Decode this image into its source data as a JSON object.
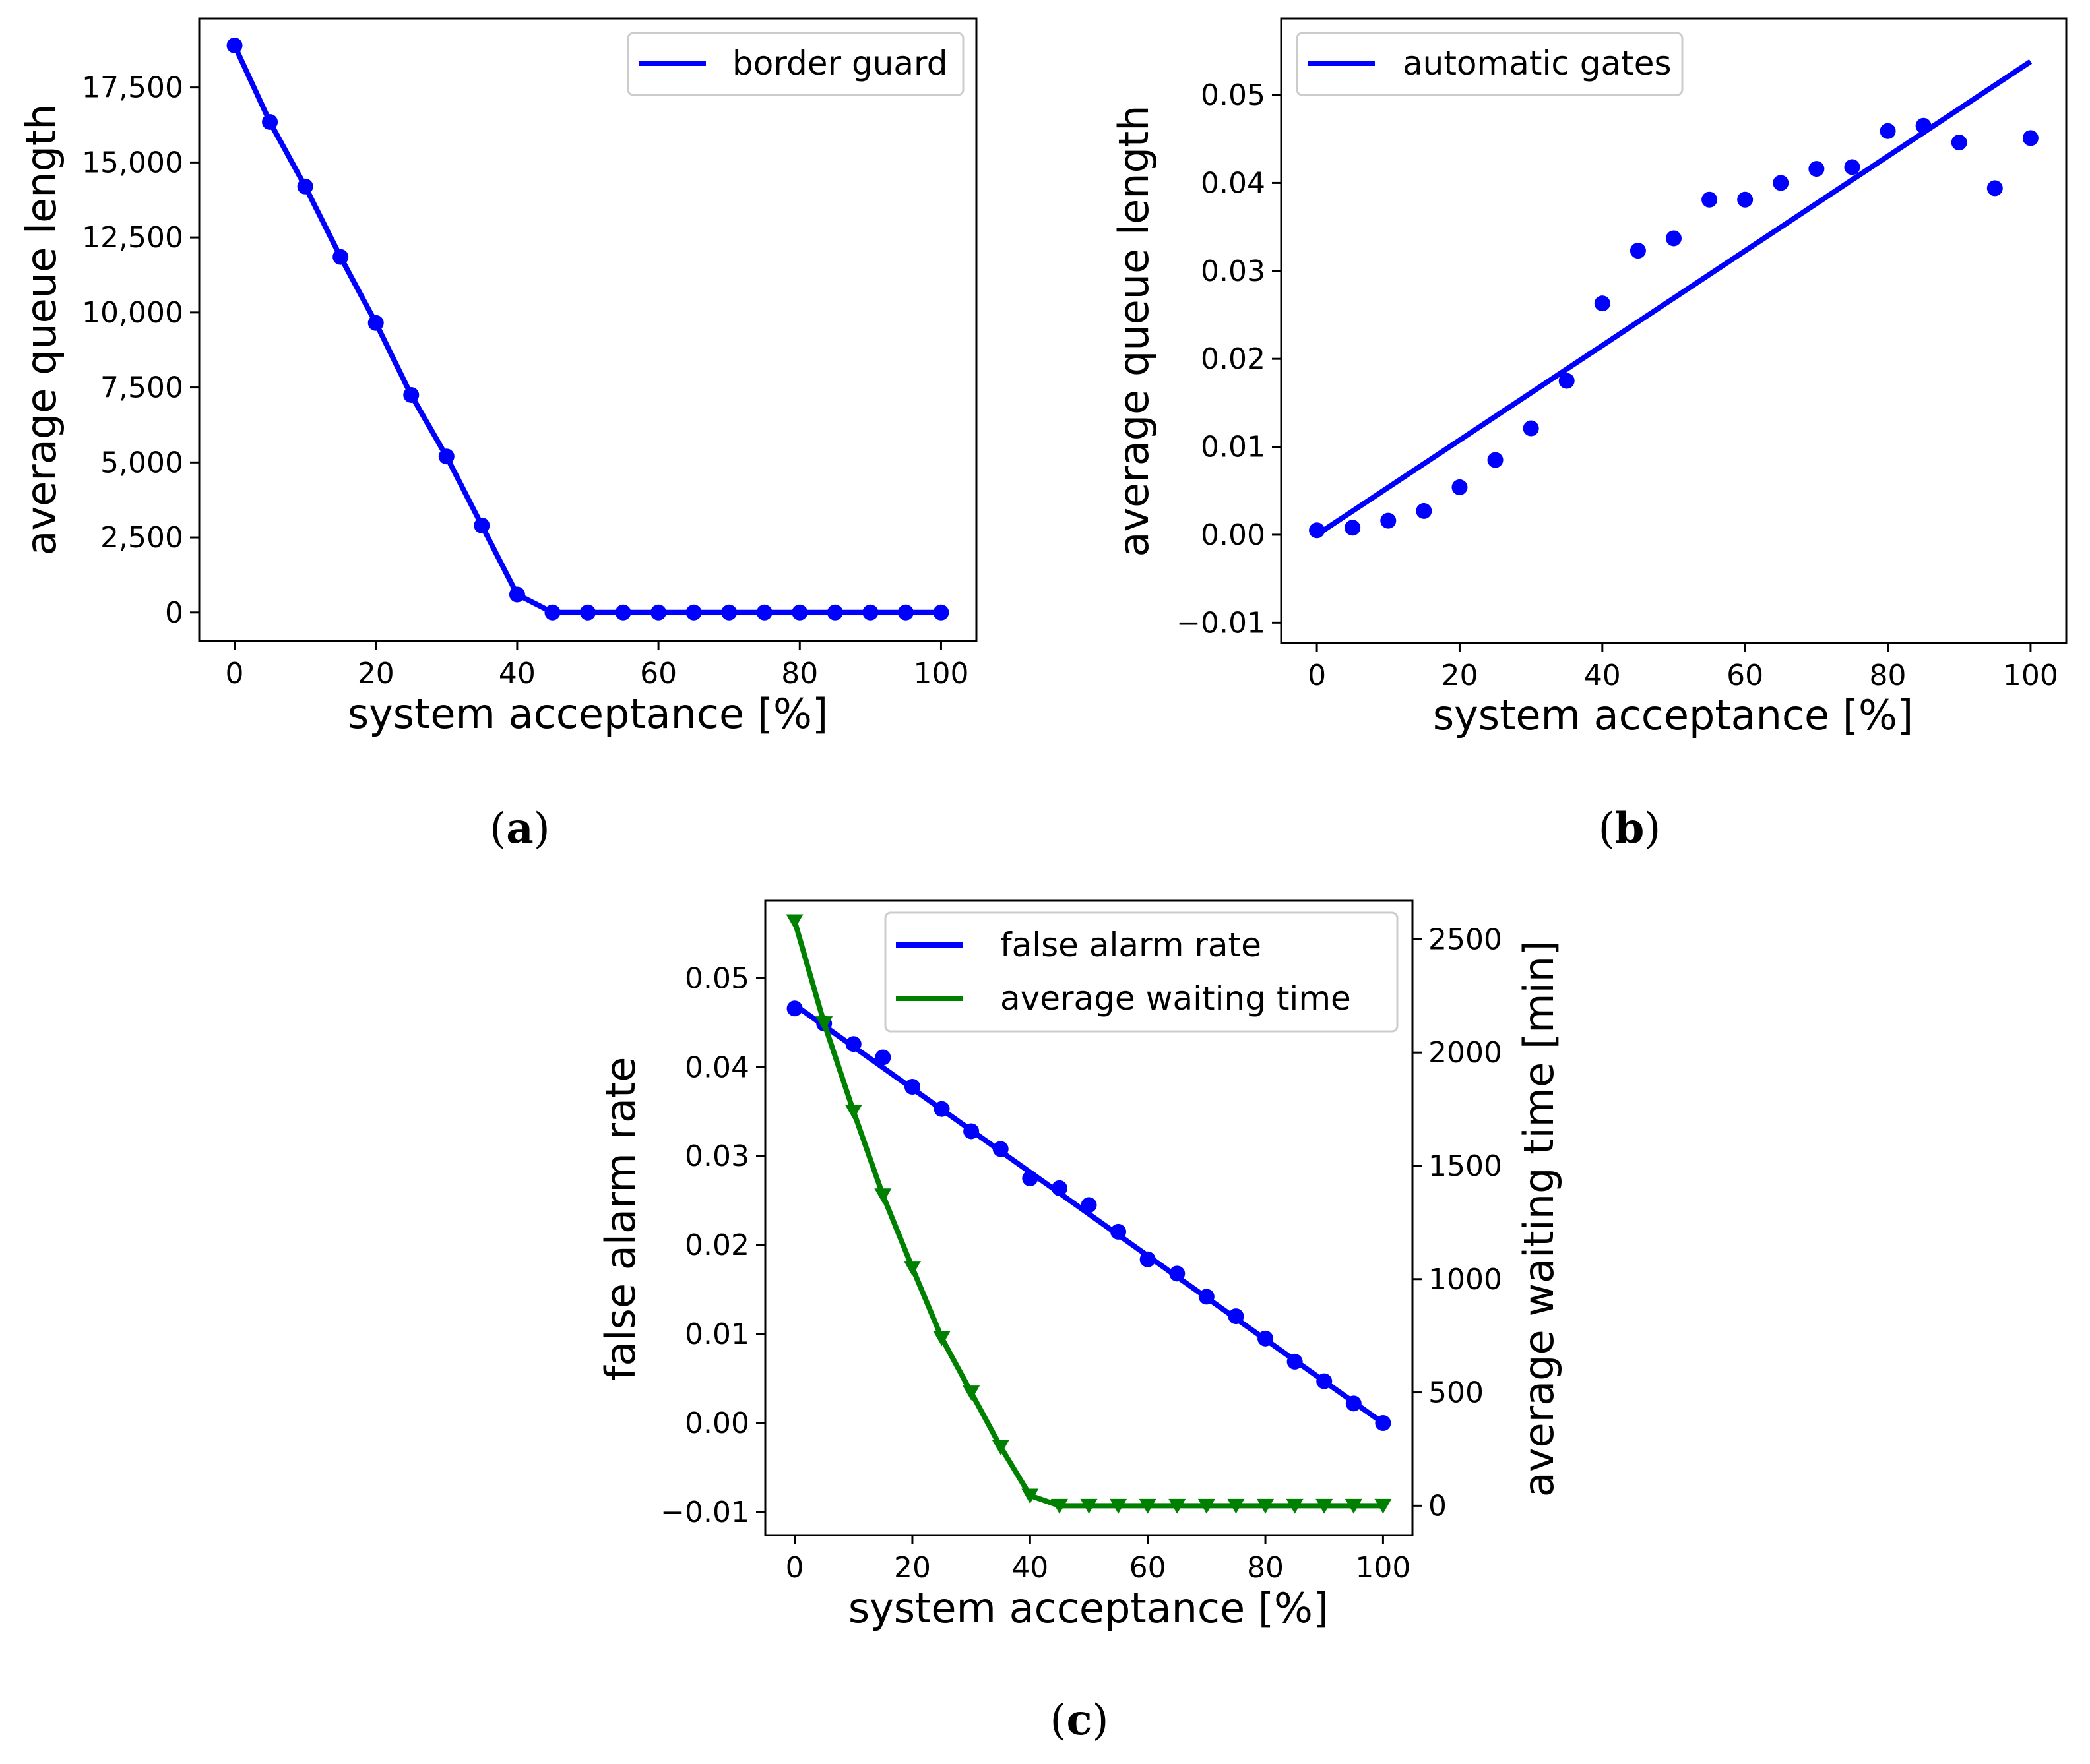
{
  "chart_data": [
    {
      "type": "line",
      "panel": "a",
      "caption": "(a)",
      "xlabel": "system acceptance [%]",
      "ylabel": "average queue length",
      "xlim": [
        -5,
        105
      ],
      "ylim": [
        -950,
        19800
      ],
      "xticks": [
        0,
        20,
        40,
        60,
        80,
        100
      ],
      "xtick_labels": [
        "0",
        "20",
        "40",
        "60",
        "80",
        "100"
      ],
      "yticks": [
        0,
        2500,
        5000,
        7500,
        10000,
        12500,
        15000,
        17500
      ],
      "ytick_labels": [
        "0",
        "2,500",
        "5,000",
        "7,500",
        "10,000",
        "12,500",
        "15,000",
        "17,500"
      ],
      "legend_position": "upper right",
      "x": [
        0,
        5,
        10,
        15,
        20,
        25,
        30,
        35,
        40,
        45,
        50,
        55,
        60,
        65,
        70,
        75,
        80,
        85,
        90,
        95,
        100
      ],
      "series": [
        {
          "name": "border guard",
          "color": "#0000ff",
          "marker": "circle",
          "values": [
            18900,
            16350,
            14200,
            11850,
            9650,
            7250,
            5200,
            2900,
            600,
            0,
            0,
            0,
            0,
            0,
            0,
            0,
            0,
            0,
            0,
            0,
            0
          ],
          "line": "connect"
        }
      ]
    },
    {
      "type": "scatter",
      "panel": "b",
      "caption": "(b)",
      "xlabel": "system acceptance [%]",
      "ylabel": "average queue length",
      "xlim": [
        -5,
        105
      ],
      "ylim": [
        -0.0123,
        0.0587
      ],
      "xticks": [
        0,
        20,
        40,
        60,
        80,
        100
      ],
      "xtick_labels": [
        "0",
        "20",
        "40",
        "60",
        "80",
        "100"
      ],
      "yticks": [
        -0.01,
        0.0,
        0.01,
        0.02,
        0.03,
        0.04,
        0.05
      ],
      "ytick_labels": [
        "−0.01",
        "0.00",
        "0.01",
        "0.02",
        "0.03",
        "0.04",
        "0.05"
      ],
      "legend_position": "upper left",
      "x": [
        0,
        5,
        10,
        15,
        20,
        25,
        30,
        35,
        40,
        45,
        50,
        55,
        60,
        65,
        70,
        75,
        80,
        85,
        90,
        95,
        100
      ],
      "series": [
        {
          "name": "automatic gates",
          "color": "#0000ff",
          "marker": "circle",
          "values": [
            0.0005,
            0.0008,
            0.0016,
            0.0027,
            0.0054,
            0.0085,
            0.0121,
            0.0175,
            0.0263,
            0.0323,
            0.0337,
            0.0381,
            0.0381,
            0.04,
            0.0416,
            0.0418,
            0.0459,
            0.0465,
            0.0446,
            0.0394,
            0.0451
          ],
          "fit_line": {
            "x": [
              0,
              100
            ],
            "y": [
              0.0,
              0.0538
            ]
          }
        }
      ]
    },
    {
      "type": "line",
      "panel": "c",
      "caption": "(c)",
      "xlabel": "system acceptance [%]",
      "ylabel": "false alarm rate",
      "y2label": "average waiting time [min]",
      "xlim": [
        -5,
        105
      ],
      "ylim": [
        -0.0126,
        0.0587
      ],
      "y2lim": [
        -130,
        2670
      ],
      "xticks": [
        0,
        20,
        40,
        60,
        80,
        100
      ],
      "xtick_labels": [
        "0",
        "20",
        "40",
        "60",
        "80",
        "100"
      ],
      "yticks": [
        -0.01,
        0.0,
        0.01,
        0.02,
        0.03,
        0.04,
        0.05
      ],
      "ytick_labels": [
        "−0.01",
        "0.00",
        "0.01",
        "0.02",
        "0.03",
        "0.04",
        "0.05"
      ],
      "y2ticks": [
        0,
        500,
        1000,
        1500,
        2000,
        2500
      ],
      "y2tick_labels": [
        "0",
        "500",
        "1000",
        "1500",
        "2000",
        "2500"
      ],
      "legend_position": "upper right",
      "x": [
        0,
        5,
        10,
        15,
        20,
        25,
        30,
        35,
        40,
        45,
        50,
        55,
        60,
        65,
        70,
        75,
        80,
        85,
        90,
        95,
        100
      ],
      "series": [
        {
          "name": "false alarm rate",
          "axis": "left",
          "color": "#0000ff",
          "marker": "circle",
          "values": [
            0.0466,
            0.0449,
            0.0426,
            0.0411,
            0.0378,
            0.0353,
            0.0328,
            0.0308,
            0.0275,
            0.0264,
            0.0245,
            0.0215,
            0.0184,
            0.0168,
            0.0142,
            0.012,
            0.0095,
            0.0069,
            0.0047,
            0.0022,
            0.0
          ],
          "fit_line": {
            "x": [
              0,
              100
            ],
            "y": [
              0.047,
              0.0
            ]
          }
        },
        {
          "name": "average waiting time",
          "axis": "right",
          "color": "#008000",
          "marker": "triangle-down",
          "values": [
            2580,
            2130,
            1740,
            1370,
            1050,
            740,
            500,
            260,
            45,
            0,
            0,
            0,
            0,
            0,
            0,
            0,
            0,
            0,
            0,
            0,
            0
          ],
          "line": "connect"
        }
      ]
    }
  ]
}
